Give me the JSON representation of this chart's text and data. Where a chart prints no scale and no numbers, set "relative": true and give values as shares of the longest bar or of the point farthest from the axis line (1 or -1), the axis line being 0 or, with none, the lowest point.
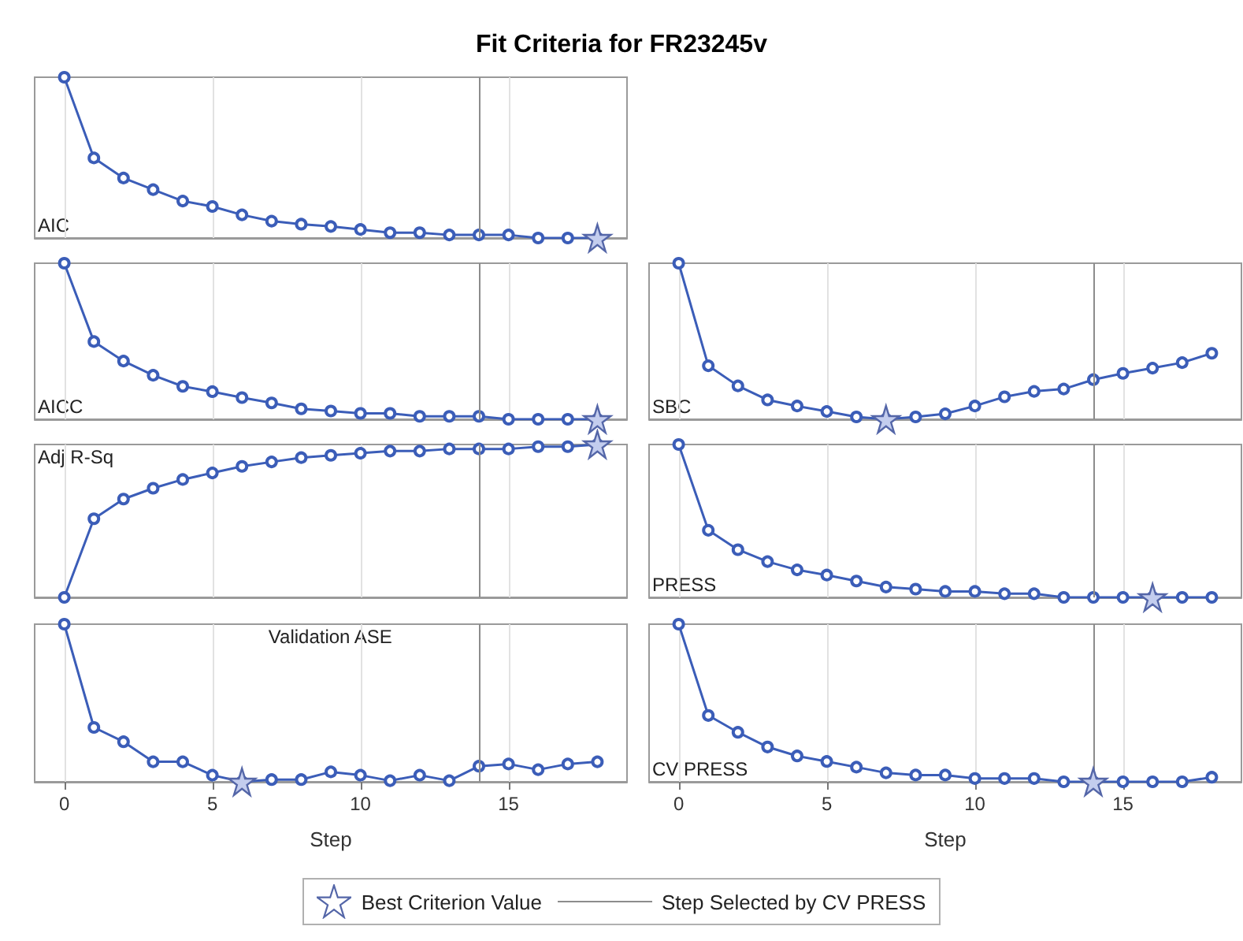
{
  "chart_data": [
    {
      "type": "line",
      "title": "Fit Criteria for FR23245v",
      "annotations": [
        "AIC"
      ],
      "relative": true,
      "x": [
        0,
        1,
        2,
        3,
        4,
        5,
        6,
        7,
        8,
        9,
        10,
        11,
        12,
        13,
        14,
        15,
        16,
        17,
        18
      ],
      "xlim": [
        -1,
        19
      ],
      "xticks": [
        0,
        5,
        10,
        15
      ],
      "tick_labels": false,
      "grid": "x",
      "marker": "circle",
      "series": [
        {
          "color": "#3b5db8",
          "values": [
            1,
            0.498,
            0.373,
            0.301,
            0.23,
            0.196,
            0.144,
            0.105,
            0.086,
            0.072,
            0.053,
            0.033,
            0.033,
            0.019,
            0.019,
            0.019,
            0,
            0,
            0
          ]
        },
        {
          "type": "scatter",
          "marker": "star",
          "color": "#5466a8",
          "x": [
            18
          ],
          "values": [
            0
          ]
        }
      ],
      "ref_lines": [
        {
          "axis": "x",
          "value": 14,
          "color": "#8c8c8c"
        }
      ]
    },
    {
      "type": "line",
      "annotations": [
        "AICC"
      ],
      "relative": true,
      "x": [
        0,
        1,
        2,
        3,
        4,
        5,
        6,
        7,
        8,
        9,
        10,
        11,
        12,
        13,
        14,
        15,
        16,
        17,
        18
      ],
      "xlim": [
        -1,
        19
      ],
      "xticks": [
        0,
        5,
        10,
        15
      ],
      "tick_labels": false,
      "grid": "x",
      "marker": "circle",
      "series": [
        {
          "color": "#3b5db8",
          "values": [
            1,
            0.498,
            0.373,
            0.282,
            0.211,
            0.177,
            0.139,
            0.105,
            0.067,
            0.053,
            0.038,
            0.038,
            0.019,
            0.019,
            0.019,
            0,
            0,
            0,
            0
          ]
        },
        {
          "type": "scatter",
          "marker": "star",
          "color": "#5466a8",
          "x": [
            18
          ],
          "values": [
            0
          ]
        }
      ],
      "ref_lines": [
        {
          "axis": "x",
          "value": 14,
          "color": "#8c8c8c"
        }
      ]
    },
    {
      "type": "line",
      "annotations": [
        "SBC"
      ],
      "relative": true,
      "x": [
        0,
        1,
        2,
        3,
        4,
        5,
        6,
        7,
        8,
        9,
        10,
        11,
        12,
        13,
        14,
        15,
        16,
        17,
        18
      ],
      "xlim": [
        -1,
        19
      ],
      "xticks": [
        0,
        5,
        10,
        15
      ],
      "tick_labels": false,
      "grid": "x",
      "marker": "circle",
      "series": [
        {
          "color": "#3b5db8",
          "values": [
            1,
            0.343,
            0.214,
            0.124,
            0.085,
            0.05,
            0.015,
            0,
            0.015,
            0.035,
            0.085,
            0.144,
            0.179,
            0.194,
            0.254,
            0.294,
            0.328,
            0.363,
            0.423
          ]
        },
        {
          "type": "scatter",
          "marker": "star",
          "color": "#5466a8",
          "x": [
            7
          ],
          "values": [
            0
          ]
        }
      ],
      "ref_lines": [
        {
          "axis": "x",
          "value": 14,
          "color": "#8c8c8c"
        }
      ]
    },
    {
      "type": "line",
      "annotations": [
        "Adj R-Sq"
      ],
      "relative": true,
      "x": [
        0,
        1,
        2,
        3,
        4,
        5,
        6,
        7,
        8,
        9,
        10,
        11,
        12,
        13,
        14,
        15,
        16,
        17,
        18
      ],
      "xlim": [
        -1,
        19
      ],
      "xticks": [
        0,
        5,
        10,
        15
      ],
      "tick_labels": false,
      "grid": "x",
      "marker": "circle",
      "series": [
        {
          "color": "#3b5db8",
          "values": [
            0,
            0.514,
            0.643,
            0.714,
            0.771,
            0.814,
            0.857,
            0.886,
            0.914,
            0.929,
            0.943,
            0.957,
            0.957,
            0.971,
            0.971,
            0.971,
            0.986,
            0.986,
            1
          ]
        },
        {
          "type": "scatter",
          "marker": "star",
          "color": "#5466a8",
          "x": [
            18
          ],
          "values": [
            1
          ]
        }
      ],
      "ref_lines": [
        {
          "axis": "x",
          "value": 14,
          "color": "#8c8c8c"
        }
      ]
    },
    {
      "type": "line",
      "annotations": [
        "PRESS"
      ],
      "relative": true,
      "x": [
        0,
        1,
        2,
        3,
        4,
        5,
        6,
        7,
        8,
        9,
        10,
        11,
        12,
        13,
        14,
        15,
        16,
        17,
        18
      ],
      "xlim": [
        -1,
        19
      ],
      "xticks": [
        0,
        5,
        10,
        15
      ],
      "tick_labels": false,
      "grid": "x",
      "marker": "circle",
      "series": [
        {
          "color": "#3b5db8",
          "values": [
            1,
            0.439,
            0.312,
            0.234,
            0.18,
            0.146,
            0.107,
            0.068,
            0.054,
            0.039,
            0.039,
            0.024,
            0.024,
            0,
            0,
            0,
            0,
            0,
            0
          ]
        },
        {
          "type": "scatter",
          "marker": "star",
          "color": "#5466a8",
          "x": [
            16
          ],
          "values": [
            0
          ]
        }
      ],
      "ref_lines": [
        {
          "axis": "x",
          "value": 14,
          "color": "#8c8c8c"
        }
      ]
    },
    {
      "type": "line",
      "annotations": [
        "Validation ASE"
      ],
      "xlabel": "Step",
      "relative": true,
      "x": [
        0,
        1,
        2,
        3,
        4,
        5,
        6,
        7,
        8,
        9,
        10,
        11,
        12,
        13,
        14,
        15,
        16,
        17,
        18
      ],
      "xlim": [
        -1,
        19
      ],
      "xticks": [
        0,
        5,
        10,
        15
      ],
      "tick_labels": "x",
      "grid": "x",
      "marker": "circle",
      "series": [
        {
          "color": "#3b5db8",
          "values": [
            1,
            0.345,
            0.254,
            0.127,
            0.127,
            0.042,
            0,
            0.014,
            0.014,
            0.063,
            0.042,
            0.007,
            0.042,
            0.007,
            0.099,
            0.113,
            0.077,
            0.113,
            0.127
          ]
        },
        {
          "type": "scatter",
          "marker": "star",
          "color": "#5466a8",
          "x": [
            6
          ],
          "values": [
            0
          ]
        }
      ],
      "ref_lines": [
        {
          "axis": "x",
          "value": 14,
          "color": "#8c8c8c"
        }
      ]
    },
    {
      "type": "line",
      "annotations": [
        "CV PRESS"
      ],
      "xlabel": "Step",
      "relative": true,
      "x": [
        0,
        1,
        2,
        3,
        4,
        5,
        6,
        7,
        8,
        9,
        10,
        11,
        12,
        13,
        14,
        15,
        16,
        17,
        18
      ],
      "xlim": [
        -1,
        19
      ],
      "xticks": [
        0,
        5,
        10,
        15
      ],
      "tick_labels": "x",
      "grid": "x",
      "marker": "circle",
      "legend": "bottom",
      "series": [
        {
          "color": "#3b5db8",
          "values": [
            1,
            0.421,
            0.314,
            0.221,
            0.164,
            0.129,
            0.093,
            0.057,
            0.043,
            0.043,
            0.021,
            0.021,
            0.021,
            0,
            0,
            0,
            0,
            0,
            0.029
          ]
        },
        {
          "type": "scatter",
          "marker": "star",
          "name": "Best Criterion Value",
          "color": "#5466a8",
          "x": [
            14
          ],
          "values": [
            0
          ]
        }
      ],
      "ref_lines": [
        {
          "axis": "x",
          "value": 14,
          "label": "Step Selected by CV PRESS",
          "color": "#8c8c8c"
        }
      ]
    }
  ]
}
